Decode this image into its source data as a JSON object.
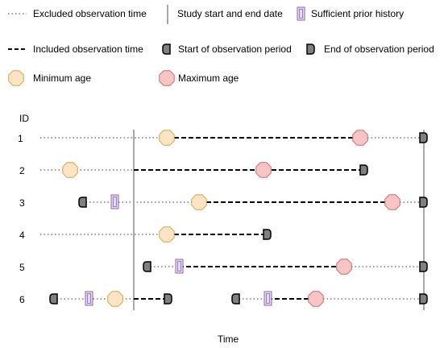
{
  "legend": {
    "excluded": "Excluded observation time",
    "study_dates": "Study start and end date",
    "prior_history": "Sufficient prior history",
    "included": "Included observation time",
    "start_obs": "Start of observation period",
    "end_obs": "End of observation period",
    "min_age": "Minimum age",
    "max_age": "Maximum age"
  },
  "axis": {
    "id_label": "ID",
    "time_label": "Time"
  },
  "rows": [
    {
      "id": "1"
    },
    {
      "id": "2"
    },
    {
      "id": "3"
    },
    {
      "id": "4"
    },
    {
      "id": "5"
    },
    {
      "id": "6"
    }
  ],
  "colors": {
    "min_age_fill": "#fde4c4",
    "min_age_stroke": "#d9a441",
    "max_age_fill": "#f7c6c4",
    "max_age_stroke": "#c96b6b",
    "prior_fill": "#e6d8f2",
    "prior_stroke": "#8a6aa8",
    "obs_fill": "#808080",
    "obs_stroke": "#000000",
    "dotted": "#9a9a9a",
    "dashed": "#000000",
    "study_line": "#8c8c8c"
  }
}
